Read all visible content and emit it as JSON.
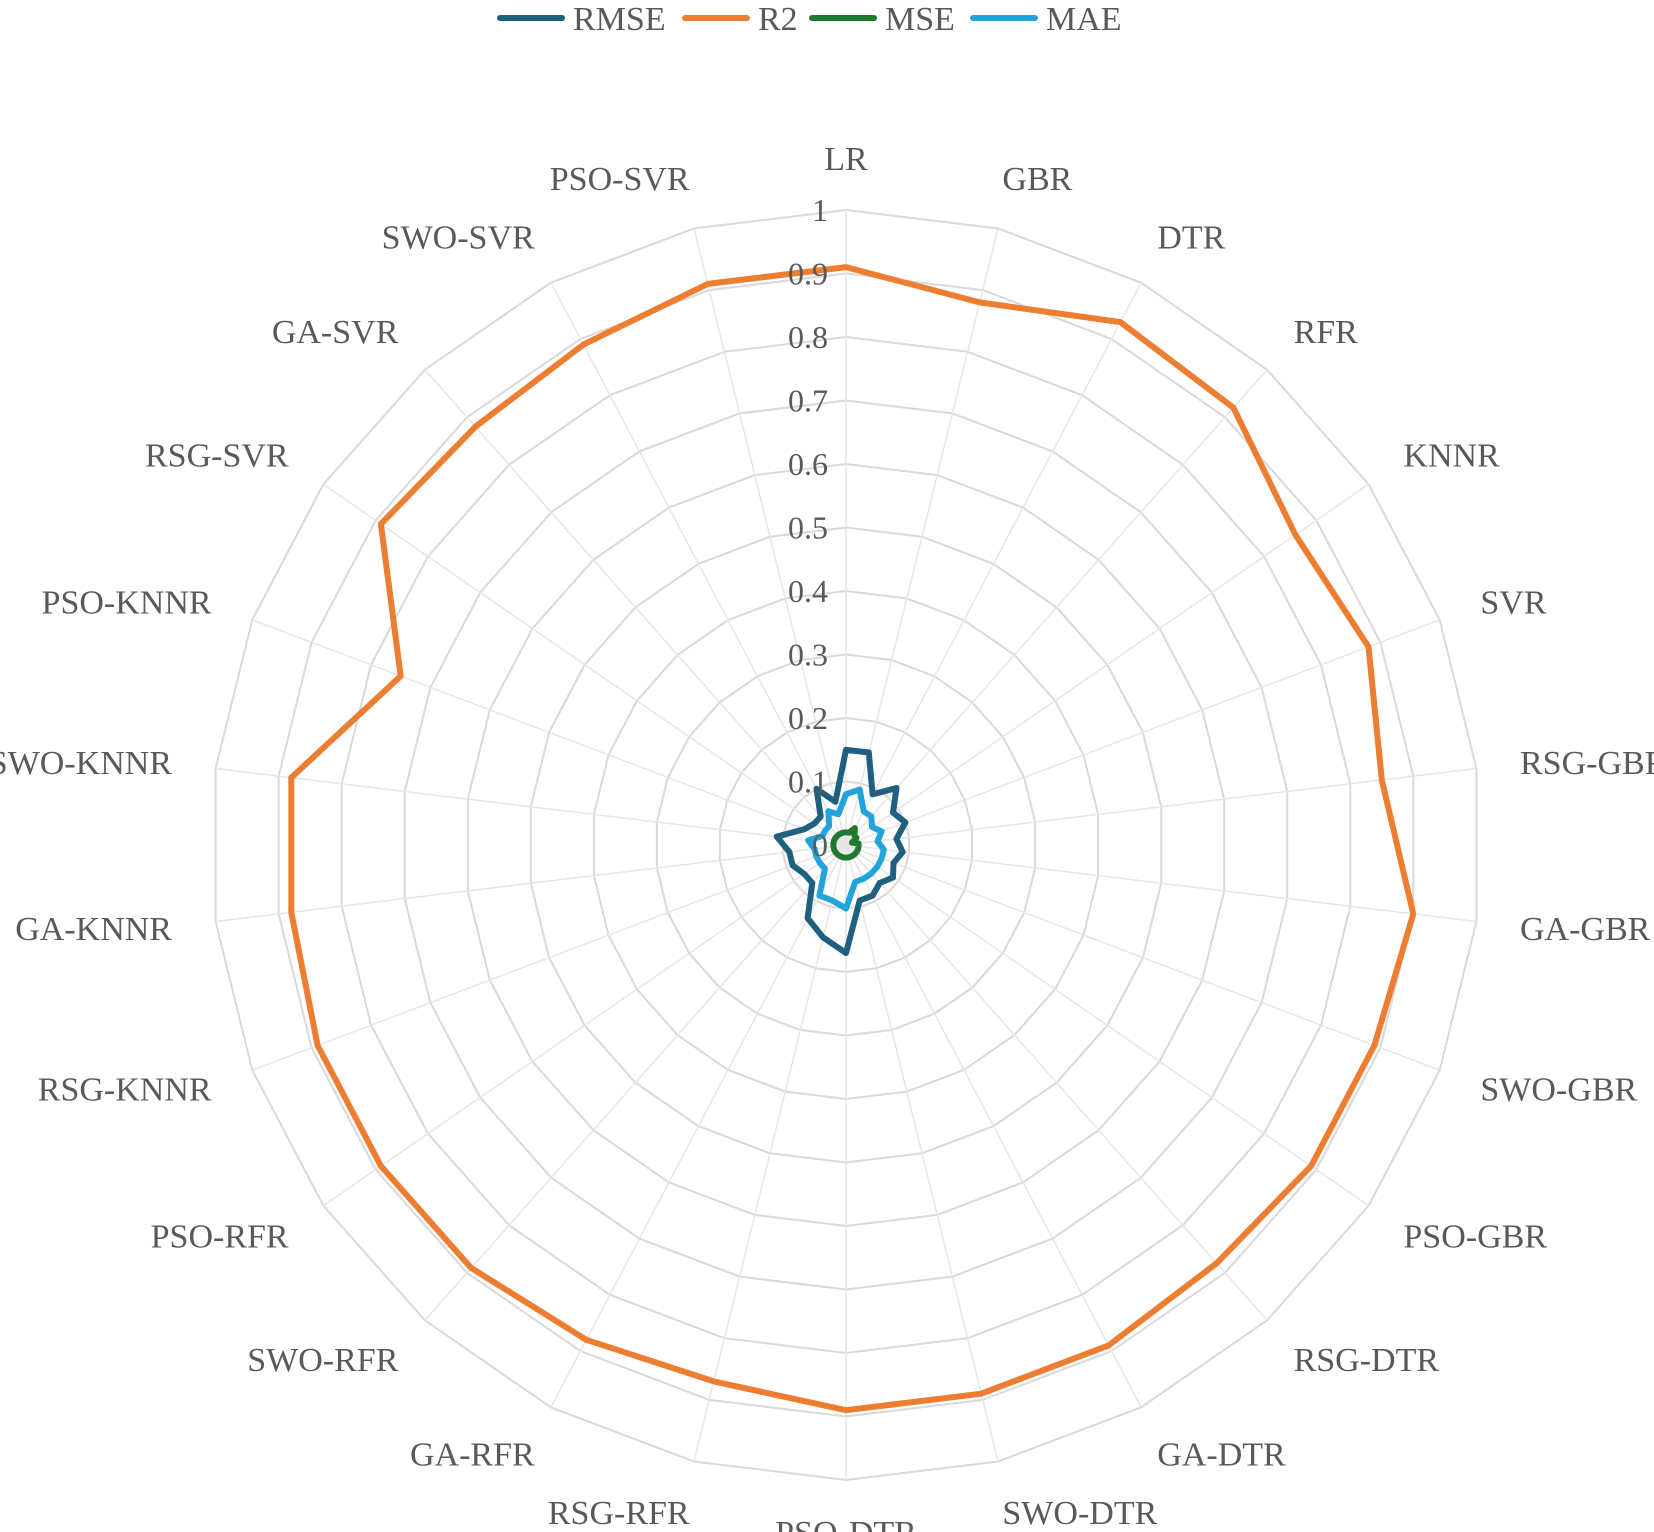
{
  "chart_data": {
    "type": "radar",
    "categories": [
      "LR",
      "GBR",
      "DTR",
      "RFR",
      "KNNR",
      "SVR",
      "RSG-GBR",
      "GA-GBR",
      "SWO-GBR",
      "PSO-GBR",
      "RSG-DTR",
      "GA-DTR",
      "SWO-DTR",
      "PSO-DTR",
      "RSG-RFR",
      "GA-RFR",
      "SWO-RFR",
      "PSO-RFR",
      "RSG-KNNR",
      "GA-KNNR",
      "SWO-KNNR",
      "PSO-KNNR",
      "RSG-SVR",
      "GA-SVR",
      "SWO-SVR",
      "PSO-SVR"
    ],
    "rlim": [
      0,
      1
    ],
    "rticks": [
      "0",
      "0.1",
      "0.2",
      "0.3",
      "0.4",
      "0.5",
      "0.6",
      "0.7",
      "0.8",
      "0.9",
      "1"
    ],
    "legend_position": "top",
    "grid": true,
    "series": [
      {
        "name": "RMSE",
        "color": "#1f5f7f",
        "values": [
          0.15,
          0.15,
          0.09,
          0.12,
          0.09,
          0.1,
          0.08,
          0.09,
          0.08,
          0.09,
          0.08,
          0.09,
          0.09,
          0.17,
          0.15,
          0.13,
          0.08,
          0.08,
          0.09,
          0.09,
          0.11,
          0.07,
          0.06,
          0.06,
          0.1,
          0.07
        ]
      },
      {
        "name": "R2",
        "color": "#ed7d31",
        "values": [
          0.91,
          0.88,
          0.93,
          0.92,
          0.86,
          0.88,
          0.85,
          0.9,
          0.89,
          0.89,
          0.88,
          0.89,
          0.89,
          0.89,
          0.87,
          0.88,
          0.89,
          0.89,
          0.89,
          0.88,
          0.88,
          0.75,
          0.89,
          0.88,
          0.89,
          0.91
        ]
      },
      {
        "name": "MSE",
        "color": "#1e7a2e",
        "values": [
          0.02,
          0.02,
          0.03,
          0.02,
          0.02,
          0.01,
          0.02,
          0.02,
          0.02,
          0.02,
          0.02,
          0.02,
          0.02,
          0.02,
          0.02,
          0.02,
          0.02,
          0.02,
          0.02,
          0.02,
          0.02,
          0.02,
          0.02,
          0.02,
          0.02,
          0.02
        ]
      },
      {
        "name": "MAE",
        "color": "#22a3dc",
        "values": [
          0.08,
          0.09,
          0.06,
          0.06,
          0.05,
          0.06,
          0.05,
          0.06,
          0.06,
          0.06,
          0.06,
          0.06,
          0.06,
          0.1,
          0.09,
          0.09,
          0.05,
          0.05,
          0.05,
          0.05,
          0.06,
          0.04,
          0.04,
          0.04,
          0.06,
          0.05
        ]
      }
    ]
  }
}
